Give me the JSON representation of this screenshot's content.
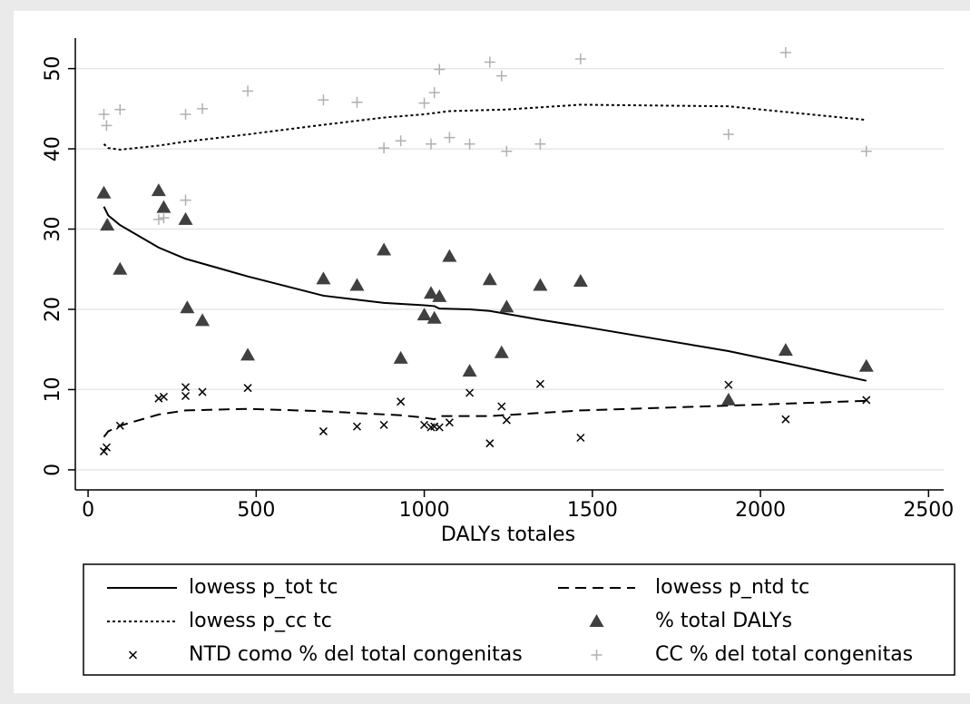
{
  "chart_data": {
    "type": "scatter",
    "x_label": "DALYs totales",
    "xlim": [
      -38,
      2545
    ],
    "xticks": [
      0,
      500,
      1000,
      1500,
      2000,
      2500
    ],
    "ylim": [
      -2.5,
      53.8
    ],
    "yticks": [
      0,
      10,
      20,
      30,
      40,
      50
    ],
    "grid": true,
    "series": [
      {
        "name": "lowess p_tot tc",
        "style": "solid",
        "color": "#000000",
        "x": [
          47,
          60,
          95,
          210,
          290,
          475,
          700,
          880,
          1000,
          1030,
          1045,
          1135,
          1195,
          1345,
          1465,
          1905,
          2075,
          2315
        ],
        "values": [
          32.8,
          31.7,
          30.5,
          27.7,
          26.3,
          24.1,
          21.7,
          20.8,
          20.5,
          20.4,
          20.1,
          20,
          19.8,
          18.7,
          17.9,
          14.8,
          13.3,
          11.1
        ]
      },
      {
        "name": "lowess p_ntd tc",
        "style": "dash",
        "color": "#000000",
        "x": [
          47,
          60,
          95,
          210,
          290,
          475,
          700,
          930,
          1000,
          1030,
          1045,
          1195,
          1465,
          1905,
          2315
        ],
        "values": [
          4.1,
          4.8,
          5.5,
          6.9,
          7.4,
          7.6,
          7.3,
          6.8,
          6.5,
          6.3,
          6.7,
          6.7,
          7.4,
          8.0,
          8.6
        ]
      },
      {
        "name": "lowess p_cc tc",
        "style": "dot",
        "color": "#000000",
        "x": [
          47,
          60,
          95,
          210,
          290,
          475,
          700,
          880,
          1000,
          1075,
          1245,
          1465,
          1905,
          2315
        ],
        "values": [
          40.6,
          40.1,
          39.9,
          40.4,
          40.9,
          41.8,
          43,
          43.9,
          44.3,
          44.7,
          44.9,
          45.5,
          45.3,
          43.6
        ]
      },
      {
        "name": "% total DALYs",
        "style": "triangle",
        "color": "#404040",
        "x": [
          47,
          57,
          95,
          210,
          225,
          290,
          295,
          340,
          475,
          700,
          800,
          880,
          930,
          1000,
          1020,
          1030,
          1045,
          1075,
          1135,
          1195,
          1230,
          1245,
          1345,
          1465,
          1905,
          2075,
          2315
        ],
        "values": [
          34.5,
          30.5,
          25,
          34.8,
          32.7,
          31.2,
          20.2,
          18.6,
          14.3,
          23.8,
          23,
          27.4,
          13.9,
          19.3,
          22,
          18.9,
          21.6,
          26.6,
          12.3,
          23.7,
          14.6,
          20.3,
          23,
          23.5,
          8.7,
          14.9,
          12.9
        ]
      },
      {
        "name": "NTD como % del total congenitas",
        "style": "x",
        "color": "#000000",
        "x": [
          47,
          55,
          95,
          210,
          225,
          290,
          290,
          340,
          475,
          700,
          800,
          880,
          930,
          1000,
          1020,
          1030,
          1045,
          1075,
          1135,
          1195,
          1230,
          1245,
          1345,
          1465,
          1905,
          2075,
          2315
        ],
        "values": [
          2.3,
          2.8,
          5.5,
          8.9,
          9.1,
          9.2,
          10.3,
          9.7,
          10.2,
          4.8,
          5.4,
          5.6,
          8.5,
          5.6,
          5.3,
          5.4,
          5.3,
          5.9,
          9.6,
          3.3,
          7.9,
          6.2,
          10.7,
          4,
          10.6,
          6.3,
          8.7
        ]
      },
      {
        "name": "CC  % del total congenitas",
        "style": "plus",
        "color": "#b0b0b0",
        "x": [
          47,
          55,
          95,
          210,
          225,
          290,
          290,
          340,
          475,
          700,
          800,
          880,
          930,
          1000,
          1020,
          1030,
          1045,
          1075,
          1135,
          1195,
          1230,
          1245,
          1345,
          1465,
          1905,
          2075,
          2315
        ],
        "values": [
          44.3,
          42.9,
          44.9,
          31.2,
          31.4,
          44.3,
          33.6,
          45,
          47.2,
          46.1,
          45.8,
          40.1,
          41,
          45.7,
          40.6,
          47,
          49.9,
          41.4,
          40.6,
          50.8,
          49.1,
          39.7,
          40.6,
          51.2,
          41.8,
          52,
          39.7
        ]
      }
    ]
  }
}
